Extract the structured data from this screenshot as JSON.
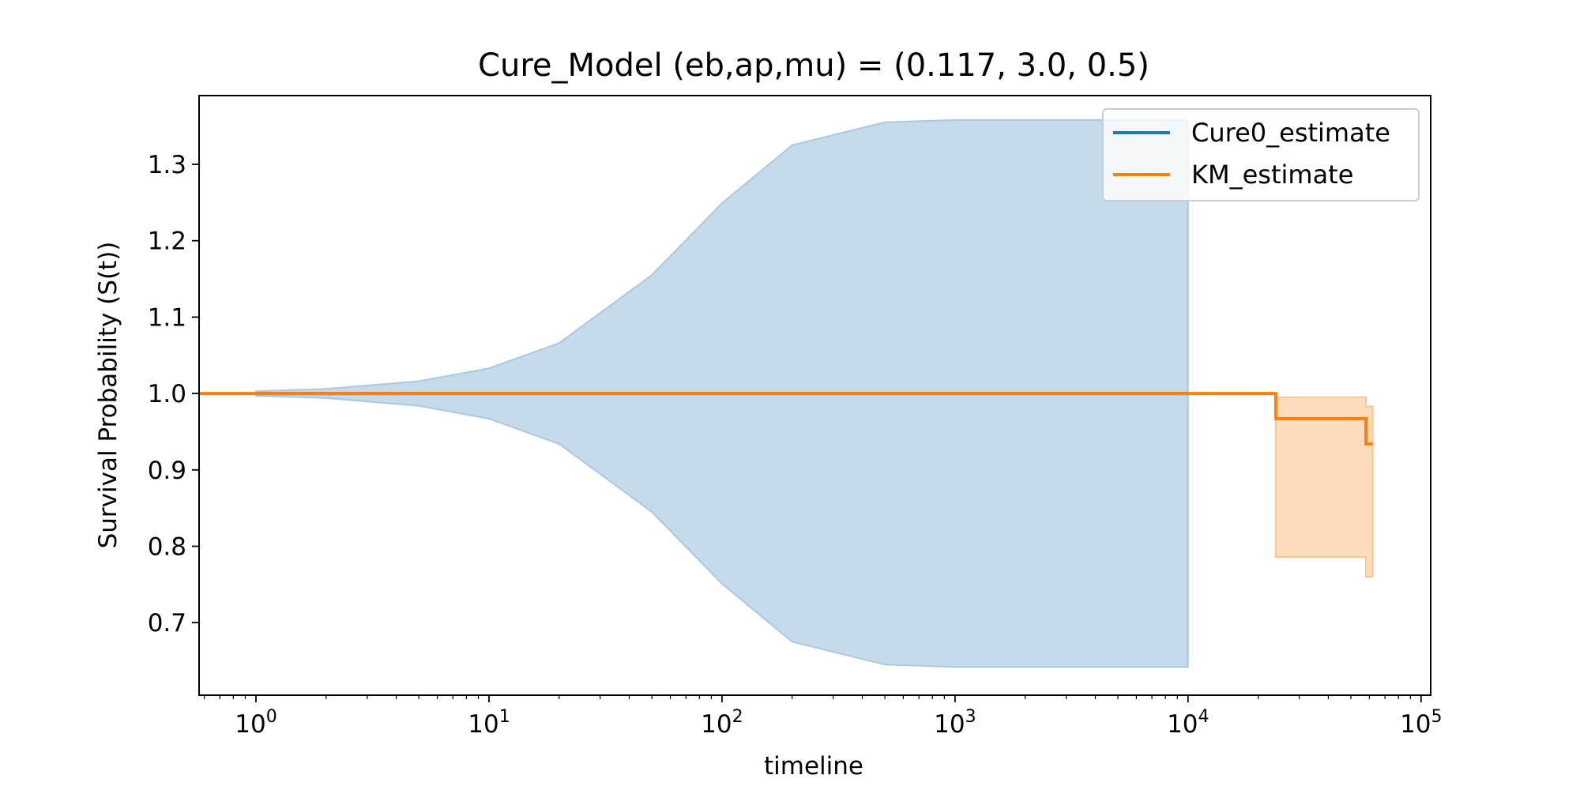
{
  "chart_data": {
    "type": "line",
    "title": "Cure_Model (eb,ap,mu) = (0.117, 3.0, 0.5)",
    "xlabel": "timeline",
    "ylabel": "Survival Probability (S(t))",
    "x_scale": "log",
    "xlim": [
      0.57,
      110000
    ],
    "ylim": [
      0.605,
      1.39
    ],
    "x_ticks": [
      {
        "value": 1,
        "base": "10",
        "exp": "0"
      },
      {
        "value": 10,
        "base": "10",
        "exp": "1"
      },
      {
        "value": 100,
        "base": "10",
        "exp": "2"
      },
      {
        "value": 1000,
        "base": "10",
        "exp": "3"
      },
      {
        "value": 10000,
        "base": "10",
        "exp": "4"
      },
      {
        "value": 100000,
        "base": "10",
        "exp": "5"
      }
    ],
    "y_ticks": [
      {
        "value": 0.7,
        "label": "0.7"
      },
      {
        "value": 0.8,
        "label": "0.8"
      },
      {
        "value": 0.9,
        "label": "0.9"
      },
      {
        "value": 1.0,
        "label": "1.0"
      },
      {
        "value": 1.1,
        "label": "1.1"
      },
      {
        "value": 1.2,
        "label": "1.2"
      },
      {
        "value": 1.3,
        "label": "1.3"
      }
    ],
    "grid": false,
    "legend_position": "top-right",
    "series": [
      {
        "name": "Cure0_estimate",
        "color": "#1f77b4",
        "band_color": "#c5dbeb",
        "band_edge_color": "#a9c9e2",
        "x": [
          1,
          2,
          5,
          10,
          20,
          50,
          100,
          200,
          500,
          1000,
          2000,
          5000,
          10000
        ],
        "y": [
          1,
          1,
          1,
          1,
          1,
          1,
          1,
          1,
          1,
          1,
          1,
          1,
          1
        ],
        "ci_upper": [
          1.003,
          1.006,
          1.016,
          1.033,
          1.066,
          1.155,
          1.249,
          1.325,
          1.355,
          1.358,
          1.358,
          1.358,
          1.358
        ],
        "ci_lower": [
          0.997,
          0.994,
          0.984,
          0.967,
          0.934,
          0.845,
          0.751,
          0.675,
          0.645,
          0.642,
          0.642,
          0.642,
          0.642
        ]
      },
      {
        "name": "KM_estimate",
        "color": "#ff7f0e",
        "band_color": "#fddcbe",
        "band_edge_color": "#fbc591",
        "step": true,
        "x": [
          0.57,
          23800,
          58000,
          62000
        ],
        "y": [
          1.0,
          0.967,
          0.934,
          0.934
        ],
        "ci_upper": [
          1.0,
          0.995,
          0.983,
          0.983
        ],
        "ci_lower": [
          1.0,
          0.786,
          0.76,
          0.76
        ]
      }
    ]
  }
}
